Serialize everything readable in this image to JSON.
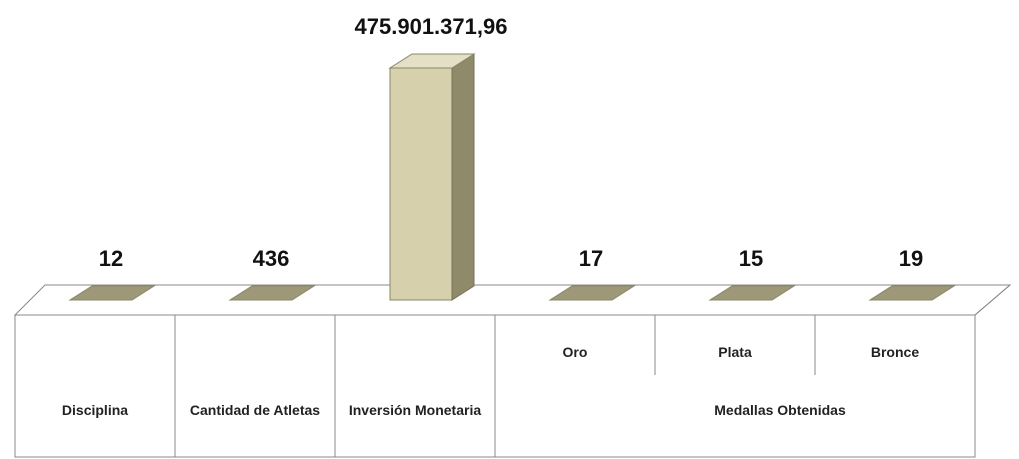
{
  "chart_data": {
    "type": "bar",
    "categories": [
      "Disciplina",
      "Cantidad de Atletas",
      "Inversión Monetaria",
      "Oro",
      "Plata",
      "Bronce"
    ],
    "group_label": "Medallas Obtenidas",
    "values": [
      12,
      436,
      475901371.96,
      17,
      15,
      19
    ],
    "value_labels": [
      "12",
      "436",
      "475.901.371,96",
      "17",
      "15",
      "19"
    ],
    "color": "#d6d0ac"
  }
}
